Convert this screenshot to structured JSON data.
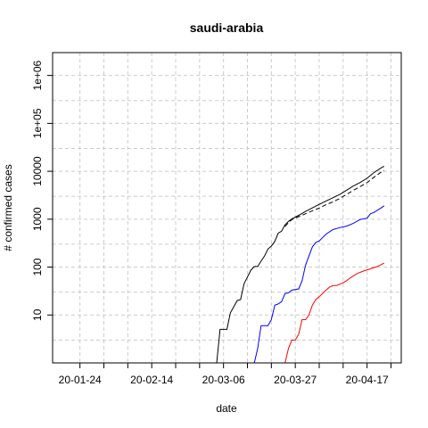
{
  "chart_data": {
    "type": "line",
    "title": "saudi-arabia",
    "xlabel": "date",
    "ylabel": "# confirmed cases",
    "y_scale": "log",
    "grid": true,
    "x_range": [
      "2020-01-16",
      "2020-04-27"
    ],
    "ylim": [
      1,
      3000000
    ],
    "x_ticks": [
      {
        "date": "2020-01-24",
        "label": "20-01-24"
      },
      {
        "date": "2020-02-14",
        "label": "20-02-14"
      },
      {
        "date": "2020-03-06",
        "label": "20-03-06"
      },
      {
        "date": "2020-03-27",
        "label": "20-03-27"
      },
      {
        "date": "2020-04-17",
        "label": "20-04-17"
      }
    ],
    "x_minor_ticks": [
      "2020-01-31",
      "2020-02-07",
      "2020-02-21",
      "2020-02-28",
      "2020-03-13",
      "2020-03-20",
      "2020-04-03",
      "2020-04-10",
      "2020-04-24"
    ],
    "y_ticks": [
      {
        "value": 10,
        "label": "10"
      },
      {
        "value": 100,
        "label": "100"
      },
      {
        "value": 1000,
        "label": "1000"
      },
      {
        "value": 10000,
        "label": "10000"
      },
      {
        "value": 100000,
        "label": "1e+05"
      },
      {
        "value": 1000000,
        "label": "1e+06"
      }
    ],
    "series": [
      {
        "color": "#000000",
        "dash": "solid",
        "points": [
          [
            "2020-03-02",
            1
          ],
          [
            "2020-03-04",
            1
          ],
          [
            "2020-03-05",
            5
          ],
          [
            "2020-03-07",
            5
          ],
          [
            "2020-03-08",
            11
          ],
          [
            "2020-03-10",
            20
          ],
          [
            "2020-03-11",
            21
          ],
          [
            "2020-03-12",
            45
          ],
          [
            "2020-03-13",
            62
          ],
          [
            "2020-03-14",
            86
          ],
          [
            "2020-03-15",
            103
          ],
          [
            "2020-03-16",
            103
          ],
          [
            "2020-03-17",
            133
          ],
          [
            "2020-03-18",
            171
          ],
          [
            "2020-03-19",
            238
          ],
          [
            "2020-03-20",
            274
          ],
          [
            "2020-03-21",
            344
          ],
          [
            "2020-03-22",
            511
          ],
          [
            "2020-03-23",
            562
          ],
          [
            "2020-03-24",
            767
          ],
          [
            "2020-03-25",
            900
          ],
          [
            "2020-03-26",
            1012
          ],
          [
            "2020-03-27",
            1104
          ],
          [
            "2020-03-28",
            1203
          ],
          [
            "2020-03-30",
            1453
          ],
          [
            "2020-04-01",
            1720
          ],
          [
            "2020-04-03",
            2039
          ],
          [
            "2020-04-05",
            2402
          ],
          [
            "2020-04-07",
            2795
          ],
          [
            "2020-04-09",
            3287
          ],
          [
            "2020-04-11",
            4033
          ],
          [
            "2020-04-13",
            4934
          ],
          [
            "2020-04-15",
            5862
          ],
          [
            "2020-04-17",
            7142
          ],
          [
            "2020-04-19",
            9362
          ],
          [
            "2020-04-21",
            11631
          ],
          [
            "2020-04-22",
            12772
          ]
        ]
      },
      {
        "color": "#000000",
        "dash": "dashed",
        "points": [
          [
            "2020-03-24",
            700
          ],
          [
            "2020-03-25",
            850
          ],
          [
            "2020-03-26",
            980
          ],
          [
            "2020-03-27",
            1050
          ],
          [
            "2020-03-28",
            1130
          ],
          [
            "2020-03-30",
            1300
          ],
          [
            "2020-04-01",
            1500
          ],
          [
            "2020-04-03",
            1700
          ],
          [
            "2020-04-05",
            2000
          ],
          [
            "2020-04-07",
            2300
          ],
          [
            "2020-04-09",
            2700
          ],
          [
            "2020-04-11",
            3300
          ],
          [
            "2020-04-13",
            4000
          ],
          [
            "2020-04-15",
            4800
          ],
          [
            "2020-04-17",
            5800
          ],
          [
            "2020-04-19",
            7500
          ],
          [
            "2020-04-21",
            9500
          ],
          [
            "2020-04-22",
            10500
          ]
        ]
      },
      {
        "color": "#0000ff",
        "dash": "solid",
        "points": [
          [
            "2020-03-10",
            1
          ],
          [
            "2020-03-15",
            1
          ],
          [
            "2020-03-16",
            2
          ],
          [
            "2020-03-17",
            6
          ],
          [
            "2020-03-19",
            6
          ],
          [
            "2020-03-20",
            8
          ],
          [
            "2020-03-21",
            16
          ],
          [
            "2020-03-22",
            17
          ],
          [
            "2020-03-23",
            19
          ],
          [
            "2020-03-24",
            28
          ],
          [
            "2020-03-25",
            29
          ],
          [
            "2020-03-26",
            33
          ],
          [
            "2020-03-28",
            35
          ],
          [
            "2020-03-29",
            52
          ],
          [
            "2020-03-30",
            110
          ],
          [
            "2020-04-01",
            264
          ],
          [
            "2020-04-02",
            329
          ],
          [
            "2020-04-03",
            351
          ],
          [
            "2020-04-05",
            488
          ],
          [
            "2020-04-07",
            607
          ],
          [
            "2020-04-09",
            666
          ],
          [
            "2020-04-11",
            715
          ],
          [
            "2020-04-13",
            820
          ],
          [
            "2020-04-15",
            990
          ],
          [
            "2020-04-17",
            1049
          ],
          [
            "2020-04-18",
            1300
          ],
          [
            "2020-04-19",
            1380
          ],
          [
            "2020-04-21",
            1700
          ],
          [
            "2020-04-22",
            1900
          ]
        ]
      },
      {
        "color": "#ff0000",
        "dash": "solid",
        "points": [
          [
            "2020-03-24",
            1
          ],
          [
            "2020-03-25",
            2
          ],
          [
            "2020-03-26",
            3
          ],
          [
            "2020-03-27",
            3
          ],
          [
            "2020-03-28",
            4
          ],
          [
            "2020-03-29",
            8
          ],
          [
            "2020-03-30",
            8
          ],
          [
            "2020-03-31",
            10
          ],
          [
            "2020-04-01",
            16
          ],
          [
            "2020-04-02",
            21
          ],
          [
            "2020-04-03",
            24
          ],
          [
            "2020-04-05",
            33
          ],
          [
            "2020-04-06",
            38
          ],
          [
            "2020-04-07",
            41
          ],
          [
            "2020-04-08",
            41
          ],
          [
            "2020-04-10",
            47
          ],
          [
            "2020-04-11",
            52
          ],
          [
            "2020-04-12",
            59
          ],
          [
            "2020-04-14",
            73
          ],
          [
            "2020-04-16",
            83
          ],
          [
            "2020-04-18",
            92
          ],
          [
            "2020-04-20",
            103
          ],
          [
            "2020-04-22",
            121
          ]
        ]
      }
    ]
  }
}
